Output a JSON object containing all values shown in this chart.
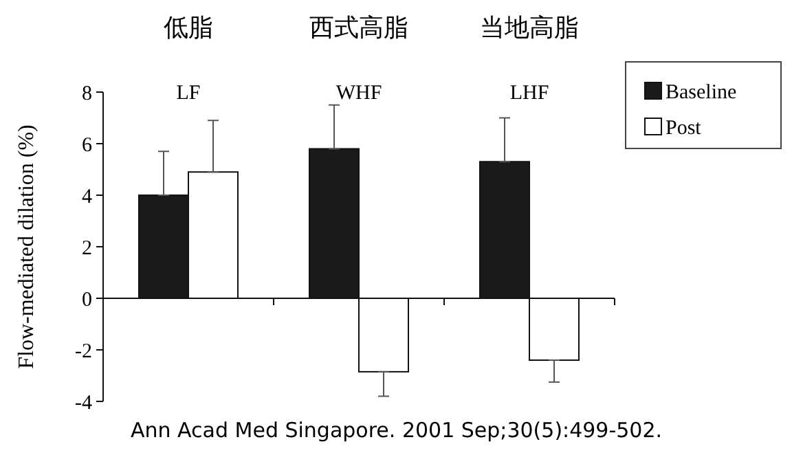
{
  "chart_data": {
    "type": "bar",
    "ylabel": "Flow-mediated dilation (%)",
    "categories": [
      "LF",
      "WHF",
      "LHF"
    ],
    "series": [
      {
        "name": "Baseline",
        "color": "#1a1a1a",
        "values": [
          4.0,
          5.8,
          5.3
        ],
        "errors": [
          [
            4.0,
            5.7
          ],
          [
            5.8,
            7.5
          ],
          [
            5.3,
            7.0
          ]
        ]
      },
      {
        "name": "Post",
        "color": "#ffffff",
        "values": [
          4.9,
          -2.85,
          -2.4
        ],
        "errors": [
          [
            4.9,
            6.9
          ],
          [
            -3.8,
            -2.85
          ],
          [
            -3.25,
            -2.4
          ]
        ]
      }
    ],
    "ylim": [
      -4,
      8
    ],
    "yticks": [
      {
        "value": -4,
        "label": "-4"
      },
      {
        "value": -2,
        "label": "-2"
      },
      0,
      2,
      4,
      6,
      8
    ],
    "legend": "top right",
    "annotations": [
      "低脂",
      "西式高脂",
      "当地高脂",
      "Ann Acad Med Singapore. 2001 Sep;30(5):499-502."
    ]
  }
}
